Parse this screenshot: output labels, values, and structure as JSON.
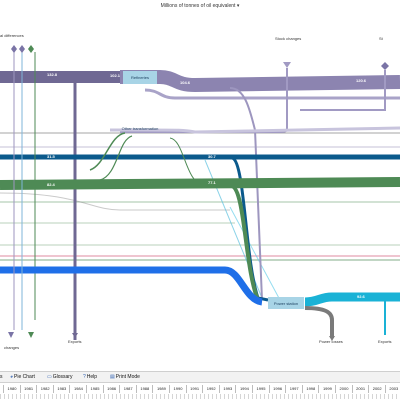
{
  "header": {
    "title": "Millions of tonnes of oil equivalent"
  },
  "labels": {
    "statistical_differences": "al differences",
    "stock_changes_top": "Stock changes",
    "stock_changes_top_right": "St",
    "stock_changes_bottom": "changes",
    "exports_left": "Exports",
    "power_losses": "Power losses",
    "exports_right": "Exports"
  },
  "nodes": {
    "refineries": "Refineries",
    "other_transformation": "Other transformation",
    "power_stations": "Power station"
  },
  "values": {
    "crude_in": "132.8",
    "refinery_in": "102.1",
    "refinery_out": "104.6",
    "right_top": "120.6",
    "blue_line": "31.5",
    "blue_line_right": "30.7",
    "green_line": "82.4",
    "green_line_right": "77.1",
    "power_out": "92.6"
  },
  "toolbar": {
    "items": [
      {
        "label": "s",
        "icon": ""
      },
      {
        "label": "Pie Chart",
        "icon": "pie-chart-icon"
      },
      {
        "label": "Glossary",
        "icon": "book-icon"
      },
      {
        "label": "Help",
        "icon": "question-icon"
      },
      {
        "label": "Print Mode",
        "icon": "printer-icon"
      }
    ]
  },
  "timeline": {
    "years": [
      "1980",
      "1981",
      "1982",
      "1983",
      "1984",
      "1985",
      "1986",
      "1987",
      "1988",
      "1989",
      "1990",
      "1991",
      "1992",
      "1993",
      "1994",
      "1995",
      "1996",
      "1997",
      "1998",
      "1999",
      "2000",
      "2001",
      "2002",
      "2003"
    ]
  },
  "colors": {
    "purple": "#8c84b0",
    "blue_dark": "#0b5a8c",
    "green": "#4e8a55",
    "cyan": "#1ab2d6",
    "blue_bright": "#1f6fe8",
    "gray": "#7a7a7a",
    "node": "#a8d4e6"
  }
}
